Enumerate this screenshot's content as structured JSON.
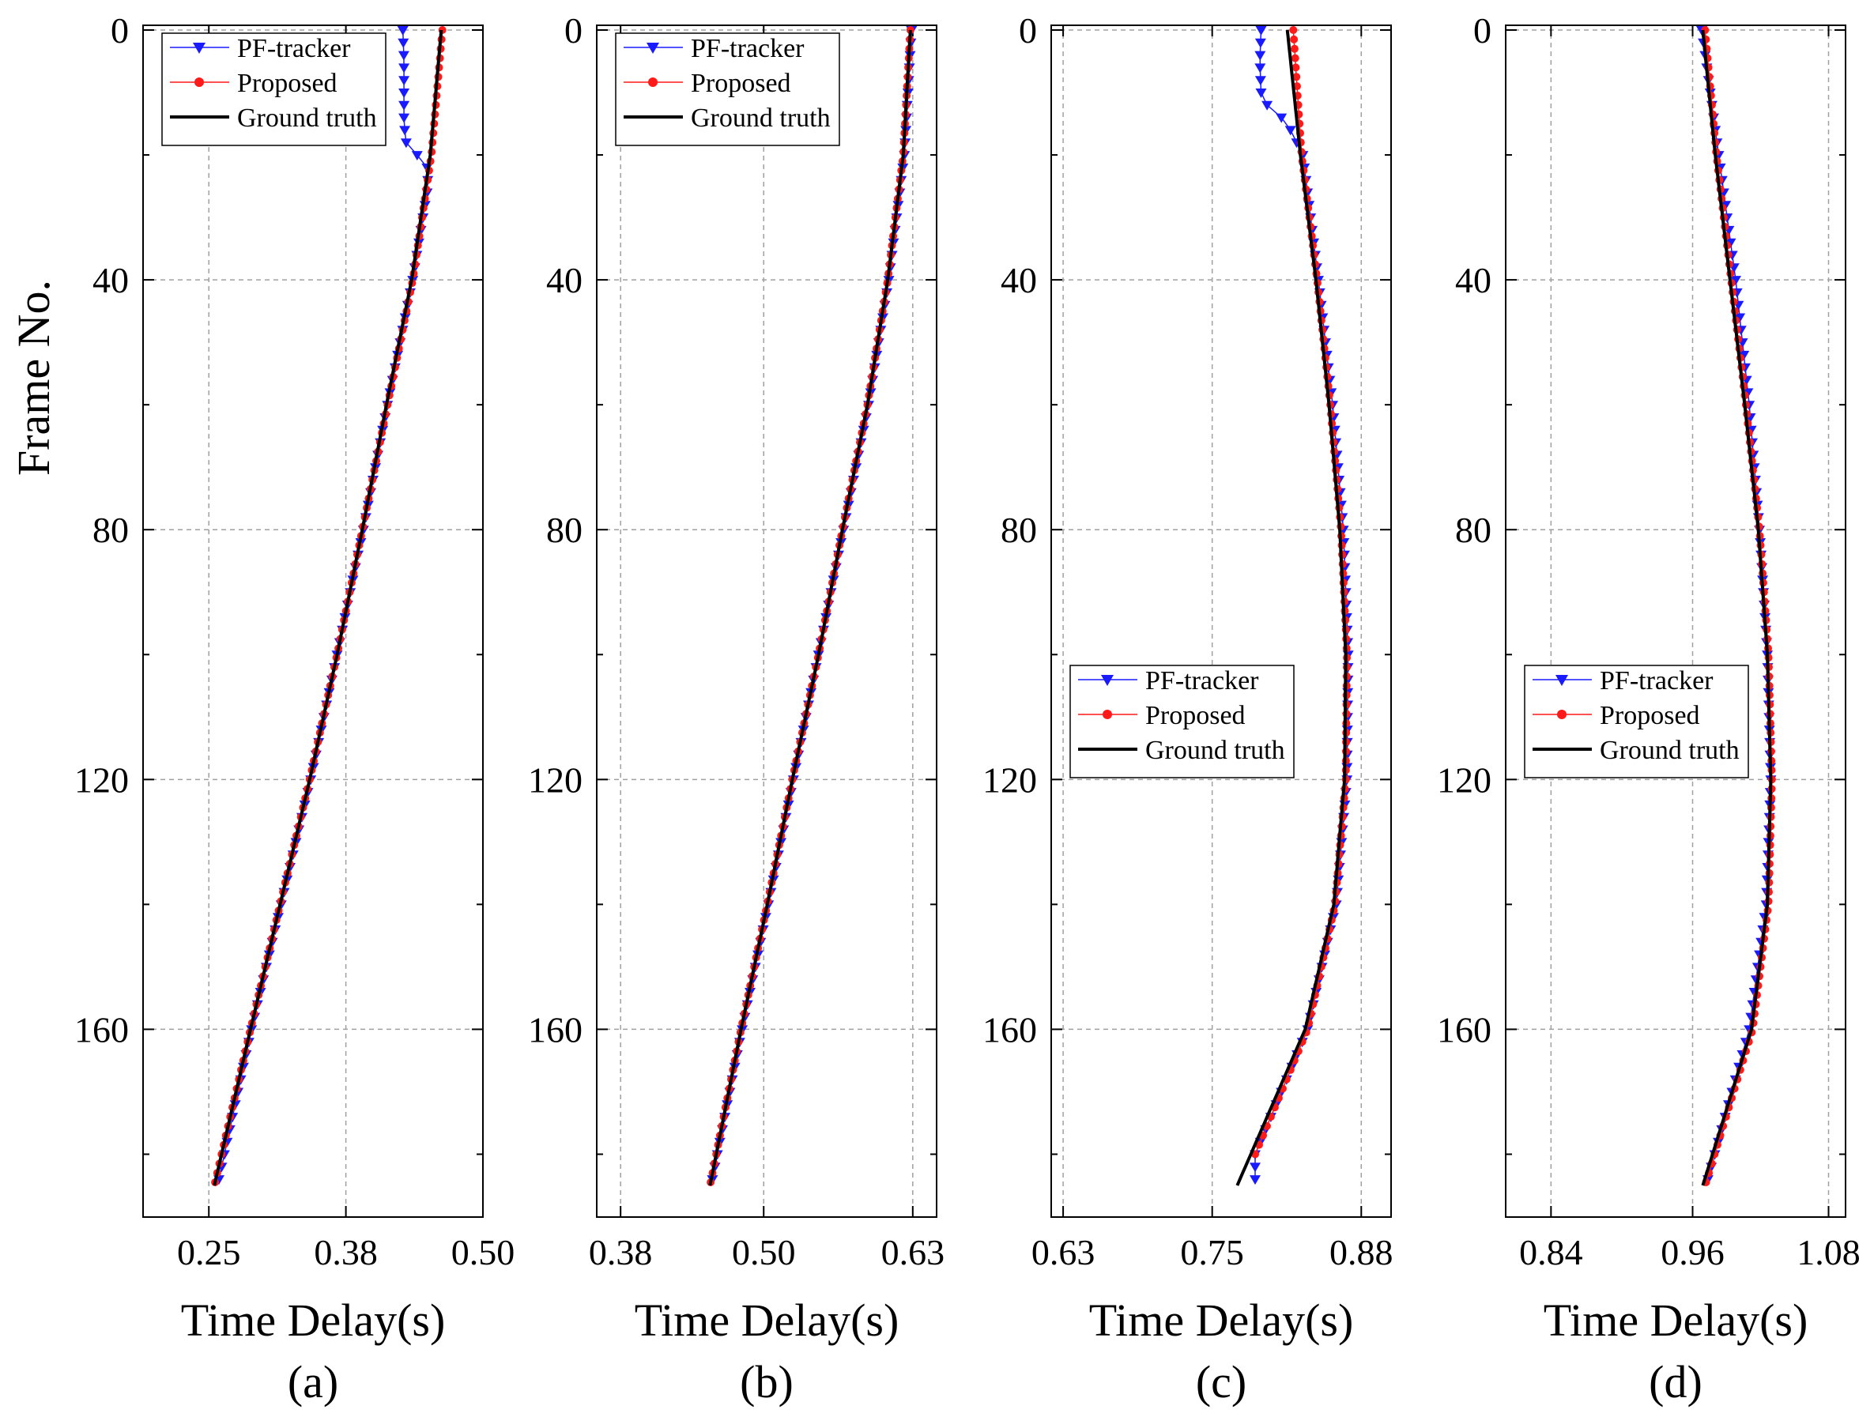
{
  "figure": {
    "ylabel": "Frame No.",
    "yticks": [
      0,
      40,
      80,
      120,
      160
    ],
    "ylim": [
      0,
      185
    ],
    "legend_labels": [
      "PF-tracker",
      "Proposed",
      "Ground truth"
    ]
  },
  "colors": {
    "pf_tracker": "#1a1aff",
    "proposed": "#ff1a1a",
    "ground_truth": "#000000",
    "grid": "#a0a0a0"
  },
  "chart_data": [
    {
      "type": "line",
      "panel_label": "(a)",
      "xlabel": "Time Delay(s)",
      "ylabel": "Frame No.",
      "xlim": [
        0.19,
        0.5
      ],
      "xticks": [
        "0.25",
        "0.38",
        "0.50"
      ],
      "xtick_values": [
        0.25,
        0.375,
        0.5
      ],
      "legend_position": "top-left",
      "ground_truth": {
        "frames": [
          0,
          20,
          40,
          60,
          80,
          100,
          120,
          140,
          160,
          185
        ],
        "delay": [
          0.462,
          0.452,
          0.435,
          0.412,
          0.39,
          0.367,
          0.342,
          0.315,
          0.288,
          0.255
        ]
      },
      "proposed": {
        "frames": [
          0,
          20,
          40,
          60,
          80,
          100,
          120,
          140,
          160,
          185
        ],
        "delay": [
          0.463,
          0.453,
          0.436,
          0.413,
          0.39,
          0.367,
          0.342,
          0.315,
          0.288,
          0.255
        ]
      },
      "pf_tracker": {
        "frames": [
          0,
          5,
          10,
          15,
          18,
          20,
          22,
          25,
          40,
          60,
          80,
          100,
          120,
          140,
          160,
          185
        ],
        "delay": [
          0.427,
          0.428,
          0.428,
          0.428,
          0.43,
          0.44,
          0.449,
          0.45,
          0.436,
          0.413,
          0.391,
          0.367,
          0.343,
          0.316,
          0.289,
          0.258
        ]
      }
    },
    {
      "type": "line",
      "panel_label": "(b)",
      "xlabel": "Time Delay(s)",
      "ylabel": "Frame No.",
      "xlim": [
        0.36,
        0.645
      ],
      "xticks": [
        "0.38",
        "0.50",
        "0.63"
      ],
      "xtick_values": [
        0.38,
        0.5,
        0.625
      ],
      "legend_position": "top-left",
      "ground_truth": {
        "frames": [
          0,
          20,
          40,
          60,
          80,
          100,
          120,
          140,
          160,
          185
        ],
        "delay": [
          0.623,
          0.617,
          0.604,
          0.587,
          0.566,
          0.546,
          0.524,
          0.503,
          0.481,
          0.455
        ]
      },
      "proposed": {
        "frames": [
          0,
          20,
          40,
          60,
          80,
          100,
          120,
          140,
          160,
          185
        ],
        "delay": [
          0.623,
          0.617,
          0.604,
          0.587,
          0.566,
          0.546,
          0.524,
          0.503,
          0.481,
          0.455
        ]
      },
      "pf_tracker": {
        "frames": [
          0,
          20,
          40,
          60,
          80,
          100,
          120,
          140,
          160,
          185
        ],
        "delay": [
          0.624,
          0.618,
          0.605,
          0.588,
          0.567,
          0.546,
          0.525,
          0.504,
          0.482,
          0.456
        ]
      }
    },
    {
      "type": "line",
      "panel_label": "(c)",
      "xlabel": "Time Delay(s)",
      "ylabel": "Frame No.",
      "xlim": [
        0.62,
        0.905
      ],
      "xticks": [
        "0.63",
        "0.75",
        "0.88"
      ],
      "xtick_values": [
        0.63,
        0.755,
        0.88
      ],
      "legend_position": "middle-left",
      "ground_truth": {
        "frames": [
          0,
          20,
          40,
          60,
          80,
          100,
          120,
          140,
          160,
          185
        ],
        "delay": [
          0.818,
          0.829,
          0.842,
          0.853,
          0.862,
          0.867,
          0.866,
          0.857,
          0.833,
          0.776
        ]
      },
      "proposed": {
        "frames": [
          0,
          20,
          40,
          60,
          80,
          100,
          120,
          140,
          160,
          180
        ],
        "delay": [
          0.823,
          0.83,
          0.843,
          0.854,
          0.863,
          0.868,
          0.867,
          0.858,
          0.835,
          0.791
        ]
      },
      "pf_tracker": {
        "frames": [
          0,
          5,
          10,
          12,
          13,
          15,
          20,
          40,
          60,
          80,
          100,
          120,
          140,
          160,
          180,
          185
        ],
        "delay": [
          0.796,
          0.795,
          0.796,
          0.801,
          0.808,
          0.818,
          0.831,
          0.844,
          0.856,
          0.865,
          0.869,
          0.868,
          0.859,
          0.835,
          0.791,
          0.791
        ]
      }
    },
    {
      "type": "line",
      "panel_label": "(d)",
      "xlabel": "Time Delay(s)",
      "ylabel": "Frame No.",
      "xlim": [
        0.8,
        1.1
      ],
      "xticks": [
        "0.84",
        "0.96",
        "1.08"
      ],
      "xtick_values": [
        0.84,
        0.965,
        1.085
      ],
      "legend_position": "middle-left",
      "ground_truth": {
        "frames": [
          0,
          20,
          40,
          60,
          80,
          100,
          120,
          140,
          160,
          185
        ],
        "delay": [
          0.974,
          0.985,
          0.998,
          1.011,
          1.023,
          1.031,
          1.034,
          1.031,
          1.017,
          0.974
        ]
      },
      "proposed": {
        "frames": [
          0,
          20,
          40,
          60,
          80,
          100,
          120,
          140,
          160,
          185
        ],
        "delay": [
          0.976,
          0.986,
          0.999,
          1.012,
          1.024,
          1.032,
          1.035,
          1.032,
          1.018,
          0.976
        ]
      },
      "pf_tracker": {
        "frames": [
          0,
          20,
          40,
          60,
          80,
          100,
          120,
          140,
          160,
          185
        ],
        "delay": [
          0.973,
          0.988,
          1.003,
          1.015,
          1.024,
          1.031,
          1.034,
          1.03,
          1.015,
          0.977
        ]
      }
    }
  ]
}
